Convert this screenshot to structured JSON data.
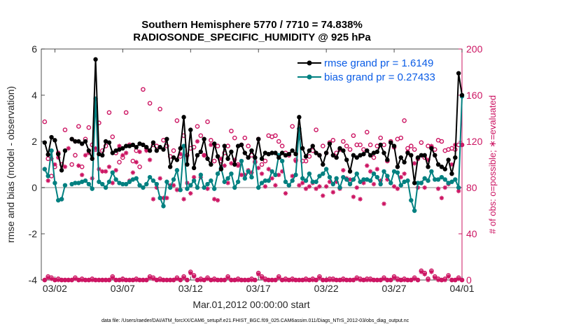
{
  "chart_data": {
    "type": "line",
    "title": [
      "Southern Hemisphere 5770 / 7710 = 74.838%",
      "RADIOSONDE_SPECIFIC_HUMIDITY @ 925 hPa"
    ],
    "xlabel": "Mar.01,2012 00:00:00 start",
    "ylabel": "rmse and bias (model - observation)",
    "y2label": "# of obs: o=possible; ∗=evaluated",
    "footnote": "data file: /Users/raeder/DAI/ATM_forcXX/CAM6_setup/f.e21.FHIST_BGC.f09_025.CAM6assim.011/Diags_NTrS_2012-03/obs_diag_output.nc",
    "xlim": [
      1.0,
      32.0
    ],
    "ylim": [
      -4,
      6
    ],
    "y2lim": [
      0,
      200
    ],
    "x_ticks": [
      2,
      7,
      12,
      17,
      22,
      27,
      32
    ],
    "x_tick_labels": [
      "03/02",
      "03/07",
      "03/12",
      "03/17",
      "03/22",
      "03/27",
      "04/01"
    ],
    "y_ticks": [
      -4,
      -2,
      0,
      2,
      4,
      6
    ],
    "y_tick_labels": [
      "-4",
      "-2",
      "0",
      "2",
      "4",
      "6"
    ],
    "y2_ticks": [
      0,
      40,
      80,
      120,
      160,
      200
    ],
    "y2_tick_labels": [
      "0",
      "40",
      "80",
      "120",
      "160",
      "200"
    ],
    "legend_position": "top-right",
    "grid": false,
    "colors": {
      "rmse": "#000000",
      "bias": "#008080",
      "obs": "#cc1462",
      "zero_line": "#bfbfbf",
      "legend_text": "#0a5ce6",
      "right_axis": "#cc1462"
    },
    "x": [
      1.25,
      1.5,
      1.75,
      2.0,
      2.25,
      2.5,
      2.75,
      3.0,
      3.25,
      3.5,
      3.75,
      4.0,
      4.25,
      4.5,
      4.75,
      5.0,
      5.25,
      5.5,
      5.75,
      6.0,
      6.25,
      6.5,
      6.75,
      7.0,
      7.25,
      7.5,
      7.75,
      8.0,
      8.25,
      8.5,
      8.75,
      9.0,
      9.25,
      9.5,
      9.75,
      10.0,
      10.25,
      10.5,
      10.75,
      11.0,
      11.25,
      11.5,
      11.75,
      12.0,
      12.25,
      12.5,
      12.75,
      13.0,
      13.25,
      13.5,
      13.75,
      14.0,
      14.25,
      14.5,
      14.75,
      15.0,
      15.25,
      15.5,
      15.75,
      16.0,
      16.25,
      16.5,
      16.75,
      17.0,
      17.25,
      17.5,
      17.75,
      18.0,
      18.25,
      18.5,
      18.75,
      19.0,
      19.25,
      19.5,
      19.75,
      20.0,
      20.25,
      20.5,
      20.75,
      21.0,
      21.25,
      21.5,
      21.75,
      22.0,
      22.25,
      22.5,
      22.75,
      23.0,
      23.25,
      23.5,
      23.75,
      24.0,
      24.25,
      24.5,
      24.75,
      25.0,
      25.25,
      25.5,
      25.75,
      26.0,
      26.25,
      26.5,
      26.75,
      27.0,
      27.25,
      27.5,
      27.75,
      28.0,
      28.25,
      28.5,
      28.75,
      29.0,
      29.25,
      29.5,
      29.75,
      30.0,
      30.25,
      30.5,
      30.75,
      31.0,
      31.25,
      31.5,
      31.75,
      32.0
    ],
    "series": [
      {
        "name": "rmse grand pr = 1.6149",
        "kind": "line-marker",
        "y": [
          1.95,
          1.43,
          2.18,
          2.05,
          1.45,
          0.75,
          1.6,
          null,
          2.1,
          2.0,
          2.0,
          1.9,
          2.0,
          1.6,
          1.25,
          5.55,
          1.45,
          1.4,
          2.0,
          1.95,
          1.5,
          1.6,
          1.65,
          1.7,
          1.8,
          1.8,
          1.85,
          1.75,
          1.9,
          1.85,
          1.75,
          1.6,
          1.95,
          1.6,
          1.75,
          1.65,
          2.1,
          0.9,
          1.3,
          1.2,
          1.7,
          3.05,
          1.0,
          2.5,
          0.85,
          1.4,
          1.55,
          2.1,
          1.25,
          1.0,
          1.9,
          1.35,
          0.8,
          1.8,
          1.25,
          1.55,
          1.0,
          1.8,
          1.85,
          1.5,
          1.3,
          1.6,
          1.3,
          2.1,
          1.25,
          1.5,
          1.45,
          1.5,
          1.5,
          1.3,
          1.5,
          1.4,
          1.45,
          1.6,
          1.45,
          3.05,
          1.7,
          1.35,
          1.6,
          1.8,
          1.5,
          1.4,
          1.0,
          1.5,
          1.9,
          1.4,
          1.3,
          1.7,
          1.6,
          1.2,
          0.7,
          1.4,
          1.3,
          1.4,
          1.45,
          1.6,
          1.4,
          1.5,
          1.55,
          1.85,
          1.5,
          1.2,
          1.95,
          1.8,
          0.9,
          1.3,
          1.1,
          1.5,
          1.4,
          0.2,
          1.3,
          1.4,
          1.4,
          0.9,
          1.7,
          1.4,
          1.0,
          0.9,
          0.8,
          1.2,
          0.6,
          1.3,
          4.95,
          4.0
        ]
      },
      {
        "name": "bias grand pr = 0.27433",
        "kind": "line-marker",
        "y": [
          0.8,
          0.5,
          1.6,
          0.2,
          -0.55,
          -0.5,
          0.1,
          null,
          0.15,
          0.2,
          0.2,
          0.25,
          0.3,
          0.15,
          -0.05,
          3.85,
          0.25,
          0.15,
          0.0,
          0.25,
          0.65,
          0.35,
          0.2,
          0.15,
          0.15,
          0.25,
          0.35,
          0.4,
          0.1,
          0.0,
          0.15,
          0.45,
          0.3,
          0.15,
          -0.45,
          -0.8,
          0.25,
          0.0,
          0.35,
          0.75,
          -0.1,
          1.8,
          -0.05,
          0.1,
          0.3,
          0.0,
          0.55,
          0.0,
          0.15,
          0.3,
          -0.05,
          0.6,
          0.85,
          0.25,
          0.4,
          0.6,
          0.0,
          0.25,
          1.15,
          0.4,
          0.7,
          0.45,
          1.3,
          0.0,
          0.2,
          0.3,
          0.3,
          0.7,
          0.55,
          1.4,
          1.15,
          0.25,
          0.1,
          0.3,
          0.55,
          2.55,
          0.4,
          0.3,
          0.6,
          0.25,
          0.25,
          0.5,
          0.6,
          0.8,
          0.45,
          0.15,
          0.4,
          0.0,
          0.45,
          0.35,
          0.15,
          0.35,
          0.6,
          0.25,
          0.35,
          0.35,
          0.3,
          0.6,
          0.45,
          0.15,
          0.7,
          0.5,
          0.2,
          0.7,
          0.65,
          0.1,
          0.25,
          0.3,
          -0.55,
          -1.0,
          0.2,
          0.2,
          0.4,
          0.3,
          0.7,
          0.35,
          0.35,
          0.45,
          0.35,
          0.2,
          0.25,
          0.35,
          0.0,
          3.95
        ]
      },
      {
        "name": "possible",
        "kind": "open-circle",
        "axis": "right",
        "y": [
          137,
          105,
          90,
          98,
          110,
          100,
          130,
          null,
          100,
          108,
          133,
          98,
          122,
          132,
          117,
          113,
          136,
          112,
          116,
          145,
          124,
          110,
          102,
          106,
          145,
          117,
          103,
          112,
          98,
          165,
          114,
          153,
          117,
          116,
          148,
          121,
          116,
          107,
          112,
          138,
          107,
          125,
          108,
          114,
          115,
          133,
          125,
          108,
          137,
          121,
          103,
          116,
          103,
          110,
          116,
          129,
          123,
          100,
          117,
          123,
          116,
          108,
          102,
          122,
          100,
          103,
          125,
          124,
          125,
          120,
          116,
          110,
          108,
          133,
          104,
          123,
          103,
          103,
          107,
          112,
          130,
          108,
          116,
          110,
          119,
          121,
          110,
          113,
          120,
          116,
          113,
          125,
          117,
          117,
          113,
          128,
          117,
          106,
          116,
          123,
          117,
          103,
          120,
          115,
          122,
          123,
          138,
          114,
          116,
          113,
          105,
          119,
          106,
          116,
          115,
          113,
          121,
          120,
          112,
          113,
          114,
          113,
          117,
          117
        ]
      },
      {
        "name": "evaluated",
        "kind": "asterisk",
        "axis": "right",
        "y": [
          96,
          86,
          105,
          100,
          106,
          70,
          98,
          114,
          122,
          120,
          99,
          91,
          108,
          110,
          88,
          114,
          96,
          94,
          94,
          98,
          84,
          95,
          116,
          108,
          110,
          86,
          93,
          102,
          111,
          117,
          112,
          104,
          70,
          80,
          88,
          71,
          71,
          82,
          82,
          78,
          109,
          70,
          84,
          75,
          89,
          120,
          89,
          108,
          79,
          117,
          70,
          69,
          105,
          99,
          84,
          101,
          104,
          99,
          91,
          91,
          95,
          93,
          103,
          97,
          92,
          81,
          96,
          88,
          82,
          91,
          94,
          75,
          82,
          90,
          103,
          82,
          84,
          79,
          81,
          84,
          79,
          81,
          73,
          81,
          85,
          76,
          85,
          79,
          95,
          88,
          87,
          72,
          80,
          70,
          84,
          99,
          94,
          83,
          96,
          86,
          66,
          87,
          84,
          81,
          79,
          89,
          92,
          111,
          108,
          101,
          80,
          84,
          80,
          104,
          116,
          108,
          79,
          71,
          80,
          83,
          100,
          117,
          77,
          117
        ]
      },
      {
        "name": "possible-low",
        "kind": "open-circle",
        "axis": "right",
        "y": [
          0,
          3,
          2,
          0,
          1,
          0,
          0,
          0,
          0,
          2,
          0,
          1,
          0,
          0,
          1,
          0,
          0,
          0,
          0,
          0,
          3,
          0,
          0,
          1,
          0,
          0,
          0,
          1,
          0,
          0,
          0,
          3,
          2,
          0,
          1,
          0,
          0,
          0,
          0,
          2,
          0,
          3,
          0,
          7,
          4,
          0,
          1,
          0,
          2,
          0,
          1,
          0,
          0,
          0,
          3,
          0,
          0,
          1,
          0,
          0,
          0,
          1,
          0,
          6,
          3,
          1,
          0,
          0,
          0,
          3,
          0,
          1,
          0,
          1,
          0,
          0,
          0,
          1,
          0,
          1,
          0,
          3,
          0,
          0,
          1,
          1,
          0,
          0,
          1,
          0,
          0,
          0,
          2,
          1,
          0,
          1,
          1,
          0,
          0,
          0,
          2,
          0,
          0,
          3,
          1,
          0,
          1,
          0,
          0,
          2,
          0,
          8,
          6,
          1,
          8,
          3,
          1,
          0,
          1,
          4,
          0,
          0,
          2,
          0
        ]
      },
      {
        "name": "evaluated-low",
        "kind": "asterisk",
        "axis": "right",
        "y": [
          0,
          2,
          1,
          0,
          0,
          0,
          0,
          0,
          0,
          1,
          0,
          0,
          0,
          0,
          0,
          0,
          0,
          0,
          0,
          0,
          2,
          0,
          0,
          0,
          0,
          0,
          0,
          0,
          0,
          0,
          0,
          2,
          1,
          0,
          0,
          0,
          0,
          0,
          0,
          1,
          0,
          2,
          0,
          6,
          3,
          0,
          0,
          0,
          1,
          0,
          0,
          0,
          0,
          0,
          2,
          0,
          0,
          0,
          0,
          0,
          0,
          0,
          0,
          5,
          2,
          0,
          0,
          0,
          0,
          2,
          0,
          0,
          0,
          0,
          0,
          0,
          0,
          0,
          0,
          0,
          0,
          2,
          0,
          0,
          0,
          0,
          0,
          0,
          0,
          0,
          0,
          0,
          1,
          0,
          0,
          0,
          0,
          0,
          0,
          0,
          1,
          0,
          0,
          2,
          0,
          0,
          0,
          0,
          0,
          1,
          0,
          7,
          5,
          0,
          7,
          2,
          0,
          0,
          0,
          3,
          0,
          0,
          1,
          0
        ]
      }
    ]
  }
}
